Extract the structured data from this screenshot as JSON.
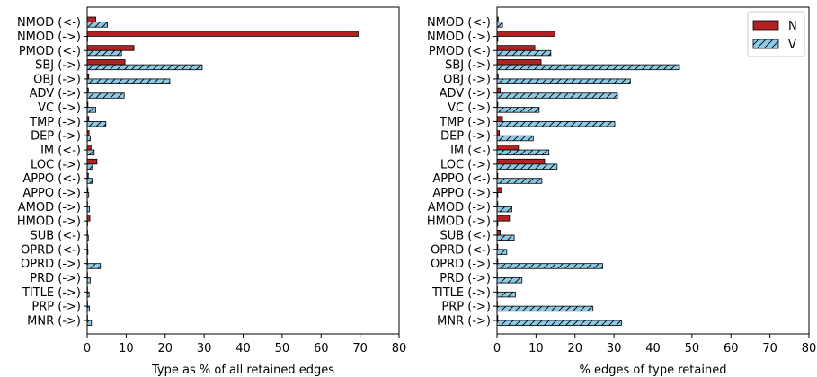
{
  "chart_data": [
    {
      "type": "bar",
      "orientation": "horizontal",
      "categories": [
        "NMOD (<-)",
        "NMOD (->)",
        "PMOD (<-)",
        "SBJ (->)",
        "OBJ (->)",
        "ADV (->)",
        "VC (->)",
        "TMP (->)",
        "DEP (->)",
        "IM (<-)",
        "LOC (->)",
        "APPO (<-)",
        "APPO (->)",
        "AMOD (->)",
        "HMOD (->)",
        "SUB (<-)",
        "OPRD (<-)",
        "OPRD (->)",
        "PRD (->)",
        "TITLE (->)",
        "PRP (->)",
        "MNR (->)"
      ],
      "series": [
        {
          "name": "N",
          "color": "#b22222",
          "hatch": false,
          "values": [
            2.2,
            69.5,
            12.0,
            9.7,
            0.4,
            0.3,
            0.2,
            0.4,
            0.5,
            1.0,
            2.5,
            0.3,
            0.2,
            0.1,
            0.7,
            0.1,
            0.1,
            0.1,
            0.1,
            0.1,
            0.1,
            0.1
          ]
        },
        {
          "name": "V",
          "color": "#8ecae6",
          "hatch": true,
          "values": [
            5.2,
            0.1,
            8.8,
            29.5,
            21.2,
            9.5,
            2.2,
            4.8,
            0.8,
            1.8,
            1.4,
            1.3,
            0.4,
            0.6,
            0.1,
            0.3,
            0.2,
            3.4,
            0.8,
            0.5,
            0.6,
            1.1
          ]
        }
      ],
      "xlabel": "Type as % of all retained edges",
      "xlim": [
        0,
        80
      ],
      "xticks": [
        0,
        10,
        20,
        30,
        40,
        50,
        60,
        70,
        80
      ],
      "legend": false
    },
    {
      "type": "bar",
      "orientation": "horizontal",
      "categories": [
        "NMOD (<-)",
        "NMOD (->)",
        "PMOD (<-)",
        "SBJ (->)",
        "OBJ (->)",
        "ADV (->)",
        "VC (->)",
        "TMP (->)",
        "DEP (->)",
        "IM (<-)",
        "LOC (->)",
        "APPO (<-)",
        "APPO (->)",
        "AMOD (->)",
        "HMOD (->)",
        "SUB (<-)",
        "OPRD (<-)",
        "OPRD (->)",
        "PRD (->)",
        "TITLE (->)",
        "PRP (->)",
        "MNR (->)"
      ],
      "series": [
        {
          "name": "N",
          "color": "#b22222",
          "hatch": false,
          "values": [
            0.3,
            14.8,
            9.7,
            11.3,
            0.3,
            0.8,
            0.2,
            1.4,
            0.6,
            5.5,
            12.2,
            0.2,
            1.3,
            0.2,
            3.2,
            0.8,
            0.2,
            0.2,
            0.1,
            0.1,
            0.1,
            0.2
          ]
        },
        {
          "name": "V",
          "color": "#8ecae6",
          "hatch": true,
          "values": [
            1.4,
            0.2,
            13.8,
            46.8,
            34.2,
            30.9,
            10.8,
            30.2,
            9.3,
            13.3,
            15.4,
            11.5,
            0.2,
            3.8,
            0.2,
            4.4,
            2.5,
            27.1,
            6.4,
            4.7,
            24.6,
            31.9
          ]
        }
      ],
      "xlabel": "% edges of type retained",
      "xlim": [
        0,
        80
      ],
      "xticks": [
        0,
        10,
        20,
        30,
        40,
        50,
        60,
        70,
        80
      ],
      "legend": true,
      "legend_position": "top-right"
    }
  ]
}
